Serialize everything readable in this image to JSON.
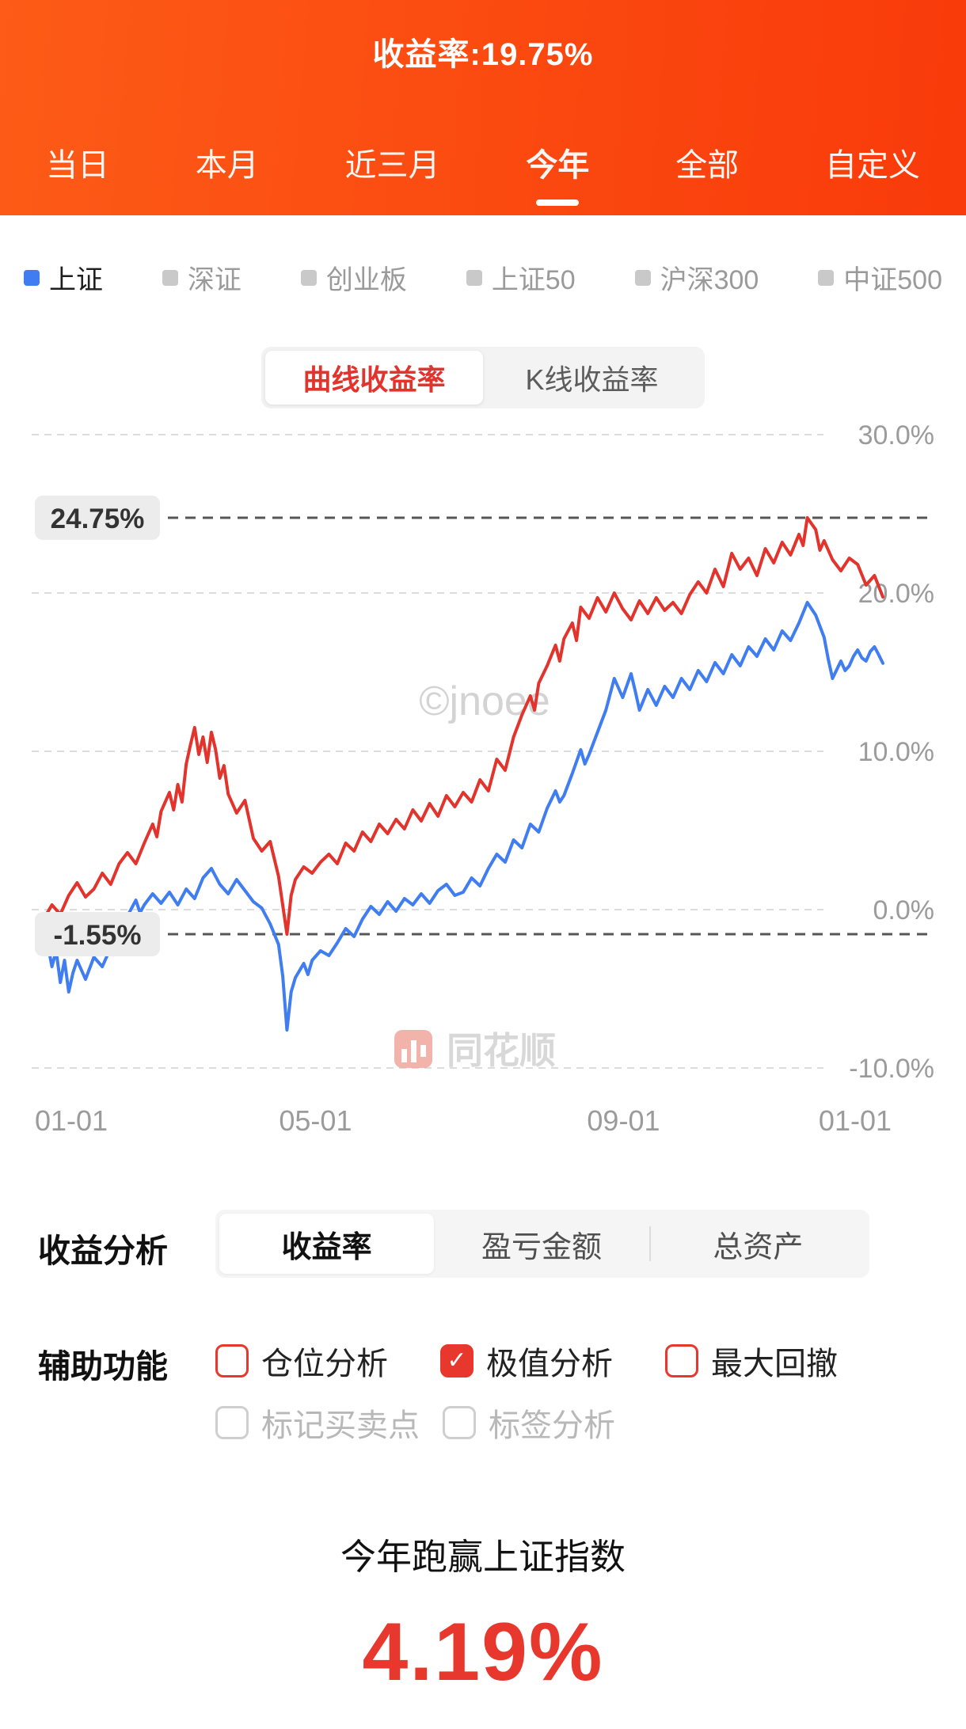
{
  "header": {
    "title": "收益率:19.75%",
    "tabs": [
      {
        "label": "当日",
        "active": false
      },
      {
        "label": "本月",
        "active": false
      },
      {
        "label": "近三月",
        "active": false
      },
      {
        "label": "今年",
        "active": true
      },
      {
        "label": "全部",
        "active": false
      },
      {
        "label": "自定义",
        "active": false
      }
    ]
  },
  "legend": {
    "items": [
      {
        "label": "上证",
        "active": true,
        "color": "#3f7df0"
      },
      {
        "label": "深证",
        "active": false,
        "color": "#c9c9c9"
      },
      {
        "label": "创业板",
        "active": false,
        "color": "#c9c9c9"
      },
      {
        "label": "上证50",
        "active": false,
        "color": "#c9c9c9"
      },
      {
        "label": "沪深300",
        "active": false,
        "color": "#c9c9c9"
      },
      {
        "label": "中证500",
        "active": false,
        "color": "#c9c9c9"
      }
    ]
  },
  "chart_toggle": {
    "options": [
      {
        "label": "曲线收益率",
        "active": true
      },
      {
        "label": "K线收益率",
        "active": false
      }
    ]
  },
  "watermarks": {
    "center": "©jnoee",
    "brand": "同花顺"
  },
  "chart_data": {
    "type": "line",
    "y_ticks": [
      "30.0%",
      "20.0%",
      "10.0%",
      "0.0%",
      "-10.0%"
    ],
    "y_tick_values": [
      30,
      20,
      10,
      0,
      -10
    ],
    "ylim": [
      -12,
      31
    ],
    "grid": "dashed",
    "legend_position": "top",
    "x_ticks": [
      {
        "label": "01-01",
        "pos": 0
      },
      {
        "label": "05-01",
        "pos": 0.324
      },
      {
        "label": "09-01",
        "pos": 0.691
      },
      {
        "label": "01-01",
        "pos": 1
      }
    ],
    "annotations": {
      "max": {
        "label": "24.75%",
        "value": 24.75
      },
      "min": {
        "label": "-1.55%",
        "value": -1.55
      }
    },
    "series": [
      {
        "name": "上证",
        "color": "#3f7df0",
        "points": [
          [
            0,
            -1.2
          ],
          [
            0.005,
            -2.2
          ],
          [
            0.01,
            -3.6
          ],
          [
            0.015,
            -2.6
          ],
          [
            0.02,
            -4.6
          ],
          [
            0.025,
            -3.2
          ],
          [
            0.03,
            -5.2
          ],
          [
            0.035,
            -4.0
          ],
          [
            0.04,
            -3.2
          ],
          [
            0.05,
            -4.4
          ],
          [
            0.06,
            -3.0
          ],
          [
            0.07,
            -3.6
          ],
          [
            0.08,
            -2.4
          ],
          [
            0.09,
            -1.4
          ],
          [
            0.1,
            -0.4
          ],
          [
            0.11,
            0.6
          ],
          [
            0.115,
            -0.2
          ],
          [
            0.12,
            0.3
          ],
          [
            0.13,
            1.0
          ],
          [
            0.14,
            0.4
          ],
          [
            0.15,
            1.1
          ],
          [
            0.16,
            0.3
          ],
          [
            0.17,
            1.3
          ],
          [
            0.18,
            0.7
          ],
          [
            0.19,
            2.0
          ],
          [
            0.2,
            2.6
          ],
          [
            0.21,
            1.6
          ],
          [
            0.22,
            1.0
          ],
          [
            0.23,
            1.9
          ],
          [
            0.24,
            1.2
          ],
          [
            0.25,
            0.5
          ],
          [
            0.26,
            0.1
          ],
          [
            0.27,
            -0.9
          ],
          [
            0.28,
            -2.2
          ],
          [
            0.285,
            -4.2
          ],
          [
            0.29,
            -7.6
          ],
          [
            0.295,
            -5.2
          ],
          [
            0.3,
            -4.3
          ],
          [
            0.31,
            -3.4
          ],
          [
            0.315,
            -4.1
          ],
          [
            0.32,
            -3.2
          ],
          [
            0.33,
            -2.6
          ],
          [
            0.34,
            -2.9
          ],
          [
            0.35,
            -2.1
          ],
          [
            0.36,
            -1.2
          ],
          [
            0.37,
            -1.7
          ],
          [
            0.38,
            -0.6
          ],
          [
            0.39,
            0.2
          ],
          [
            0.4,
            -0.3
          ],
          [
            0.41,
            0.5
          ],
          [
            0.42,
            -0.1
          ],
          [
            0.43,
            0.7
          ],
          [
            0.44,
            0.3
          ],
          [
            0.45,
            1.0
          ],
          [
            0.46,
            0.4
          ],
          [
            0.47,
            1.2
          ],
          [
            0.48,
            1.6
          ],
          [
            0.49,
            0.9
          ],
          [
            0.5,
            1.1
          ],
          [
            0.51,
            2.0
          ],
          [
            0.52,
            1.5
          ],
          [
            0.53,
            2.6
          ],
          [
            0.54,
            3.5
          ],
          [
            0.55,
            3.0
          ],
          [
            0.56,
            4.4
          ],
          [
            0.57,
            3.9
          ],
          [
            0.58,
            5.4
          ],
          [
            0.59,
            4.9
          ],
          [
            0.6,
            6.4
          ],
          [
            0.61,
            7.5
          ],
          [
            0.615,
            6.8
          ],
          [
            0.62,
            7.2
          ],
          [
            0.63,
            8.6
          ],
          [
            0.64,
            10.1
          ],
          [
            0.645,
            9.2
          ],
          [
            0.65,
            9.8
          ],
          [
            0.66,
            11.2
          ],
          [
            0.67,
            12.6
          ],
          [
            0.68,
            14.6
          ],
          [
            0.69,
            13.4
          ],
          [
            0.7,
            14.9
          ],
          [
            0.705,
            13.8
          ],
          [
            0.71,
            12.6
          ],
          [
            0.72,
            13.9
          ],
          [
            0.73,
            12.9
          ],
          [
            0.74,
            14.1
          ],
          [
            0.75,
            13.4
          ],
          [
            0.76,
            14.6
          ],
          [
            0.77,
            13.9
          ],
          [
            0.78,
            15.1
          ],
          [
            0.79,
            14.4
          ],
          [
            0.8,
            15.6
          ],
          [
            0.81,
            14.9
          ],
          [
            0.82,
            16.1
          ],
          [
            0.83,
            15.4
          ],
          [
            0.84,
            16.6
          ],
          [
            0.85,
            16.0
          ],
          [
            0.86,
            17.1
          ],
          [
            0.87,
            16.4
          ],
          [
            0.88,
            17.6
          ],
          [
            0.89,
            17.0
          ],
          [
            0.9,
            18.1
          ],
          [
            0.91,
            19.4
          ],
          [
            0.92,
            18.6
          ],
          [
            0.93,
            17.2
          ],
          [
            0.935,
            15.8
          ],
          [
            0.94,
            14.6
          ],
          [
            0.95,
            15.7
          ],
          [
            0.955,
            15.1
          ],
          [
            0.96,
            15.4
          ],
          [
            0.965,
            16.0
          ],
          [
            0.97,
            16.4
          ],
          [
            0.975,
            15.9
          ],
          [
            0.98,
            15.7
          ],
          [
            0.985,
            16.3
          ],
          [
            0.99,
            16.6
          ],
          [
            0.995,
            16.1
          ],
          [
            1,
            15.56
          ]
        ]
      },
      {
        "name": "收益率",
        "color": "#e2342c",
        "points": [
          [
            0,
            -0.6
          ],
          [
            0.01,
            0.3
          ],
          [
            0.02,
            -0.3
          ],
          [
            0.03,
            0.9
          ],
          [
            0.04,
            1.7
          ],
          [
            0.05,
            0.8
          ],
          [
            0.06,
            1.3
          ],
          [
            0.07,
            2.3
          ],
          [
            0.08,
            1.6
          ],
          [
            0.09,
            2.9
          ],
          [
            0.1,
            3.6
          ],
          [
            0.11,
            2.9
          ],
          [
            0.12,
            4.2
          ],
          [
            0.13,
            5.4
          ],
          [
            0.135,
            4.6
          ],
          [
            0.14,
            6.2
          ],
          [
            0.15,
            7.4
          ],
          [
            0.155,
            6.3
          ],
          [
            0.16,
            7.9
          ],
          [
            0.165,
            6.8
          ],
          [
            0.17,
            9.2
          ],
          [
            0.175,
            10.4
          ],
          [
            0.18,
            11.5
          ],
          [
            0.185,
            9.8
          ],
          [
            0.19,
            10.9
          ],
          [
            0.195,
            9.3
          ],
          [
            0.2,
            11.2
          ],
          [
            0.205,
            10.1
          ],
          [
            0.21,
            8.3
          ],
          [
            0.215,
            9.1
          ],
          [
            0.22,
            7.3
          ],
          [
            0.23,
            6.1
          ],
          [
            0.24,
            6.9
          ],
          [
            0.25,
            4.5
          ],
          [
            0.26,
            3.7
          ],
          [
            0.27,
            4.3
          ],
          [
            0.28,
            2.1
          ],
          [
            0.29,
            -1.55
          ],
          [
            0.295,
            0.9
          ],
          [
            0.3,
            1.9
          ],
          [
            0.31,
            2.7
          ],
          [
            0.32,
            2.3
          ],
          [
            0.33,
            3.0
          ],
          [
            0.34,
            3.5
          ],
          [
            0.35,
            2.9
          ],
          [
            0.36,
            4.2
          ],
          [
            0.37,
            3.7
          ],
          [
            0.38,
            4.9
          ],
          [
            0.39,
            4.3
          ],
          [
            0.4,
            5.4
          ],
          [
            0.41,
            4.8
          ],
          [
            0.42,
            5.7
          ],
          [
            0.43,
            5.1
          ],
          [
            0.44,
            6.3
          ],
          [
            0.45,
            5.6
          ],
          [
            0.46,
            6.7
          ],
          [
            0.47,
            5.9
          ],
          [
            0.48,
            7.2
          ],
          [
            0.49,
            6.5
          ],
          [
            0.5,
            7.4
          ],
          [
            0.51,
            6.8
          ],
          [
            0.52,
            8.2
          ],
          [
            0.53,
            7.5
          ],
          [
            0.54,
            9.5
          ],
          [
            0.55,
            8.8
          ],
          [
            0.56,
            10.9
          ],
          [
            0.57,
            12.3
          ],
          [
            0.58,
            13.5
          ],
          [
            0.585,
            12.6
          ],
          [
            0.59,
            14.3
          ],
          [
            0.6,
            15.4
          ],
          [
            0.61,
            16.7
          ],
          [
            0.615,
            15.7
          ],
          [
            0.62,
            17.1
          ],
          [
            0.63,
            18.1
          ],
          [
            0.635,
            17.0
          ],
          [
            0.64,
            19.1
          ],
          [
            0.65,
            18.4
          ],
          [
            0.66,
            19.7
          ],
          [
            0.67,
            18.8
          ],
          [
            0.68,
            20.0
          ],
          [
            0.69,
            19.0
          ],
          [
            0.7,
            18.3
          ],
          [
            0.71,
            19.5
          ],
          [
            0.72,
            18.7
          ],
          [
            0.73,
            19.7
          ],
          [
            0.74,
            18.9
          ],
          [
            0.75,
            19.4
          ],
          [
            0.76,
            18.7
          ],
          [
            0.77,
            19.9
          ],
          [
            0.78,
            20.7
          ],
          [
            0.79,
            20.0
          ],
          [
            0.8,
            21.5
          ],
          [
            0.81,
            20.4
          ],
          [
            0.82,
            22.5
          ],
          [
            0.83,
            21.5
          ],
          [
            0.84,
            22.2
          ],
          [
            0.85,
            21.1
          ],
          [
            0.86,
            22.8
          ],
          [
            0.87,
            21.9
          ],
          [
            0.88,
            23.2
          ],
          [
            0.89,
            22.4
          ],
          [
            0.9,
            23.7
          ],
          [
            0.905,
            23.0
          ],
          [
            0.91,
            24.75
          ],
          [
            0.92,
            24.0
          ],
          [
            0.925,
            22.7
          ],
          [
            0.93,
            23.3
          ],
          [
            0.94,
            22.1
          ],
          [
            0.95,
            21.4
          ],
          [
            0.96,
            22.2
          ],
          [
            0.97,
            21.8
          ],
          [
            0.98,
            20.5
          ],
          [
            0.99,
            21.1
          ],
          [
            1,
            19.75
          ]
        ]
      }
    ]
  },
  "analysis": {
    "section_label": "收益分析",
    "tabs": [
      {
        "label": "收益率",
        "active": true
      },
      {
        "label": "盈亏金额",
        "active": false
      },
      {
        "label": "总资产",
        "active": false
      }
    ]
  },
  "aux": {
    "section_label": "辅助功能",
    "check_glyph": "✓",
    "options": [
      {
        "label": "仓位分析",
        "checked": false,
        "style": "red"
      },
      {
        "label": "极值分析",
        "checked": true,
        "style": "red"
      },
      {
        "label": "最大回撤",
        "checked": false,
        "style": "red"
      },
      {
        "label": "标记买卖点",
        "checked": false,
        "style": "gray"
      },
      {
        "label": "标签分析",
        "checked": false,
        "style": "gray"
      }
    ]
  },
  "summary": {
    "caption": "今年跑赢上证指数",
    "value": "4.19%"
  }
}
